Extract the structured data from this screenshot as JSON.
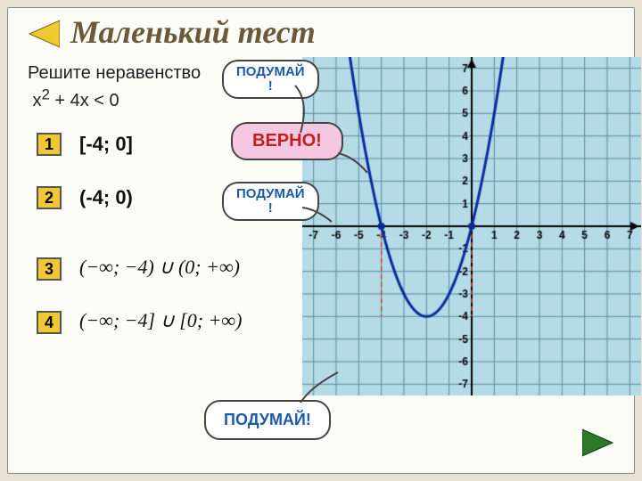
{
  "title": "Маленький тест",
  "prompt_line1": "Решите неравенство",
  "prompt_line2_html": "x² + 4x < 0",
  "answers": {
    "a1": {
      "n": "1",
      "text": "[-4; 0]"
    },
    "a2": {
      "n": "2",
      "text": "(-4; 0)"
    },
    "a3": {
      "n": "3",
      "math": "(−∞; −4) ∪ (0; +∞)"
    },
    "a4": {
      "n": "4",
      "math": "(−∞; −4] ∪ [0; +∞)"
    }
  },
  "callouts": {
    "think1": "ПОДУМАЙ\n!",
    "correct": "ВЕРНО!",
    "think2": "ПОДУМАЙ\n!",
    "think3": "ПОДУМАЙ!"
  },
  "colors": {
    "correct": "#c02020",
    "think": "#1a5aa8",
    "accent_gold": "#f0c832",
    "nav_green": "#2a7a2a",
    "grid_bg": "#b4dbe6",
    "grid_line": "#5a8aa0",
    "axis": "#000000",
    "parabola": "#0a2a9a",
    "pink": "#f6c7e0",
    "dashed_red": "#d04020"
  },
  "chart": {
    "type": "parabola",
    "xlim": [
      -7,
      7
    ],
    "ylim": [
      -7,
      7
    ],
    "xticks": [
      -7,
      -6,
      -5,
      -4,
      -3,
      -2,
      -1,
      1,
      2,
      3,
      4,
      5,
      6,
      7
    ],
    "yticks": [
      -7,
      -6,
      -5,
      -4,
      -3,
      -2,
      -1,
      1,
      2,
      3,
      4,
      5,
      6,
      7
    ],
    "grid_step": 1,
    "parabola_a": 1,
    "parabola_b": 4,
    "parabola_c": 0,
    "vertex": [
      -2,
      -4
    ],
    "roots": [
      -4,
      0
    ]
  }
}
